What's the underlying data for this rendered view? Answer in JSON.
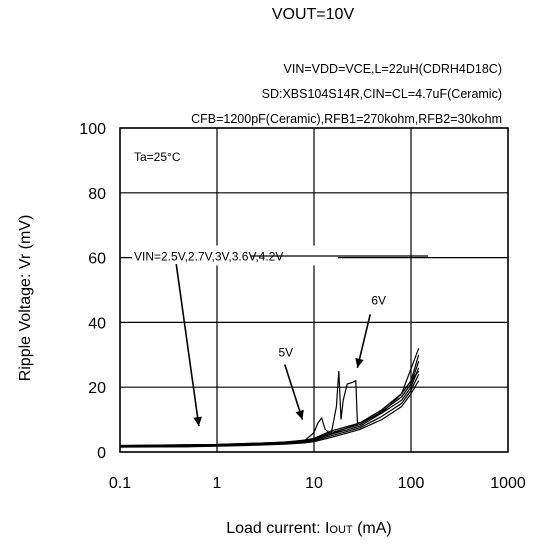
{
  "title": "VOUT=10V",
  "conditions": [
    "VIN=VDD=VCE,L=22uH(CDRH4D18C)",
    "SD:XBS104S14R,CIN=CL=4.7uF(Ceramic)",
    "CFB=1200pF(Ceramic),RFB1=270kohm,RFB2=30kohm"
  ],
  "chart_data": {
    "type": "line",
    "title": "VOUT=10V",
    "xlabel_main": "Load current: I",
    "xlabel_sub": "OUT",
    "xlabel_unit": " (mA)",
    "ylabel": "Ripple Voltage: Vr (mV)",
    "xscale": "log",
    "xlim": [
      0.1,
      1000
    ],
    "ylim": [
      0,
      100
    ],
    "xticks": [
      "0.1",
      "1",
      "10",
      "100",
      "1000"
    ],
    "yticks": [
      "0",
      "20",
      "40",
      "60",
      "80",
      "100"
    ],
    "grid": true,
    "annotations": {
      "temperature": "Ta=25°C",
      "vin_group": "VIN=2.5V,2.7V,3V,3.6V,4.2V",
      "v5": "5V",
      "v6": "6V"
    },
    "series": [
      {
        "x": [
          0.1,
          0.5,
          1,
          2,
          5,
          8,
          10,
          15,
          20,
          30,
          50,
          80,
          100,
          120
        ],
        "y": [
          1.5,
          1.6,
          1.8,
          2.0,
          2.4,
          2.8,
          3.2,
          4.5,
          5.5,
          7.0,
          10.0,
          14.0,
          18.0,
          22.0
        ]
      },
      {
        "x": [
          0.1,
          0.5,
          1,
          2,
          5,
          8,
          10,
          15,
          20,
          30,
          50,
          80,
          100,
          120
        ],
        "y": [
          1.6,
          1.7,
          1.9,
          2.1,
          2.6,
          3.0,
          3.5,
          5.0,
          6.0,
          7.5,
          11.0,
          15.0,
          19.0,
          24.0
        ]
      },
      {
        "x": [
          0.1,
          0.5,
          1,
          2,
          5,
          8,
          10,
          15,
          20,
          30,
          50,
          80,
          100,
          120
        ],
        "y": [
          1.7,
          1.8,
          2.0,
          2.2,
          2.8,
          3.2,
          3.8,
          5.5,
          6.5,
          8.0,
          12.0,
          16.0,
          20.0,
          26.0
        ]
      },
      {
        "x": [
          0.1,
          0.5,
          1,
          2,
          5,
          8,
          10,
          15,
          20,
          30,
          50,
          80,
          100,
          120
        ],
        "y": [
          1.8,
          1.9,
          2.1,
          2.4,
          3.0,
          3.4,
          4.0,
          6.0,
          7.0,
          8.5,
          12.5,
          17.0,
          21.0,
          28.0
        ]
      },
      {
        "x": [
          0.1,
          0.5,
          1,
          2,
          5,
          8,
          10,
          15,
          20,
          30,
          50,
          80,
          100,
          120
        ],
        "y": [
          1.9,
          2.0,
          2.2,
          2.5,
          3.1,
          3.6,
          4.2,
          6.5,
          7.5,
          9.0,
          13.0,
          18.0,
          22.0,
          30.0
        ]
      },
      {
        "x": [
          0.1,
          1,
          5,
          8,
          10,
          11,
          12,
          13,
          15,
          20,
          30,
          50,
          80,
          120
        ],
        "y": [
          2.0,
          2.3,
          3.0,
          3.5,
          6.0,
          9.0,
          10.5,
          7.0,
          5.5,
          7.0,
          9.0,
          12.0,
          18.0,
          25.0
        ]
      },
      {
        "x": [
          0.1,
          1,
          5,
          10,
          15,
          17,
          18,
          19,
          20,
          22,
          25,
          27,
          28,
          30,
          50,
          80,
          120
        ],
        "y": [
          2.0,
          2.3,
          3.0,
          4.0,
          5.5,
          14.0,
          25.0,
          10.0,
          16.0,
          21.0,
          21.5,
          22.0,
          9.0,
          9.0,
          13.0,
          18.0,
          32.0
        ]
      }
    ]
  }
}
